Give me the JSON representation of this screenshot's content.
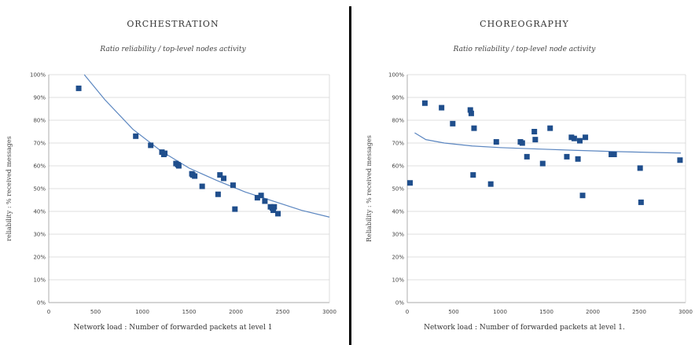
{
  "chart_data": [
    {
      "type": "scatter",
      "title": "ORCHESTRATION",
      "subtitle": "Ratio reliability / top-level nodes activity",
      "xlabel": "Network load : Number of forwarded packets at  level 1",
      "ylabel": "reliability : % received messages",
      "xlim": [
        0,
        3000
      ],
      "ylim": [
        0,
        100
      ],
      "xticks": [
        "0",
        "500",
        "1000",
        "1500",
        "2000",
        "2500",
        "3000"
      ],
      "yticks": [
        "0%",
        "10%",
        "20%",
        "30%",
        "40%",
        "50%",
        "60%",
        "70%",
        "80%",
        "90%",
        "100%"
      ],
      "grid": true,
      "marker_color": "#1f4e8c",
      "trend_color": "#5b86c0",
      "trendline": "power",
      "series": [
        {
          "x": [
            320,
            930,
            1090,
            1210,
            1230,
            1240,
            1360,
            1380,
            1390,
            1530,
            1540,
            1560,
            1640,
            1810,
            1830,
            1870,
            1970,
            1990,
            2230,
            2270,
            2310,
            2370,
            2390,
            2400,
            2410,
            2450
          ],
          "y": [
            94,
            73,
            69,
            66,
            65,
            65.5,
            61,
            60.5,
            60,
            56.5,
            56,
            55.5,
            51,
            47.5,
            56,
            54.5,
            51.5,
            41,
            46,
            47,
            44.5,
            42,
            41.5,
            40.5,
            42,
            39
          ]
        }
      ],
      "trend": {
        "x": [
          380,
          600,
          900,
          1200,
          1500,
          1800,
          2100,
          2400,
          2700,
          3000
        ],
        "y": [
          100,
          89,
          76,
          66.5,
          59,
          53.5,
          48.5,
          44.5,
          40.5,
          37.5
        ]
      }
    },
    {
      "type": "scatter",
      "title": "CHOREOGRAPHY",
      "subtitle": "Ratio reliability / top-level node activity",
      "xlabel": "Network load : Number of forwarded packets at  level 1.",
      "ylabel": "Reliability : % received messages",
      "xlim": [
        0,
        3000
      ],
      "ylim": [
        0,
        100
      ],
      "xticks": [
        "0",
        "500",
        "1000",
        "1500",
        "2000",
        "2500",
        "3000"
      ],
      "yticks": [
        "0%",
        "10%",
        "20%",
        "30%",
        "40%",
        "50%",
        "60%",
        "70%",
        "80%",
        "90%",
        "100%"
      ],
      "grid": true,
      "marker_color": "#1f4e8c",
      "trend_color": "#5b86c0",
      "trendline": "power",
      "series": [
        {
          "x": [
            30,
            190,
            370,
            490,
            680,
            690,
            710,
            720,
            900,
            960,
            1220,
            1240,
            1290,
            1370,
            1380,
            1460,
            1540,
            1720,
            1770,
            1800,
            1840,
            1860,
            1890,
            1920,
            2200,
            2230,
            2510,
            2520,
            2940
          ],
          "y": [
            52.5,
            87.5,
            85.5,
            78.5,
            84.5,
            83,
            56,
            76.5,
            52,
            70.5,
            70.5,
            70,
            64,
            75,
            71.5,
            61,
            76.5,
            64,
            72.5,
            72,
            63,
            71,
            47,
            72.5,
            65,
            65,
            59,
            44,
            62.5
          ]
        }
      ],
      "trend": {
        "x": [
          80,
          200,
          400,
          700,
          1000,
          1400,
          1800,
          2200,
          2600,
          2950
        ],
        "y": [
          74.5,
          71.5,
          70,
          68.7,
          68,
          67.4,
          66.8,
          66.3,
          65.9,
          65.6
        ]
      }
    }
  ]
}
